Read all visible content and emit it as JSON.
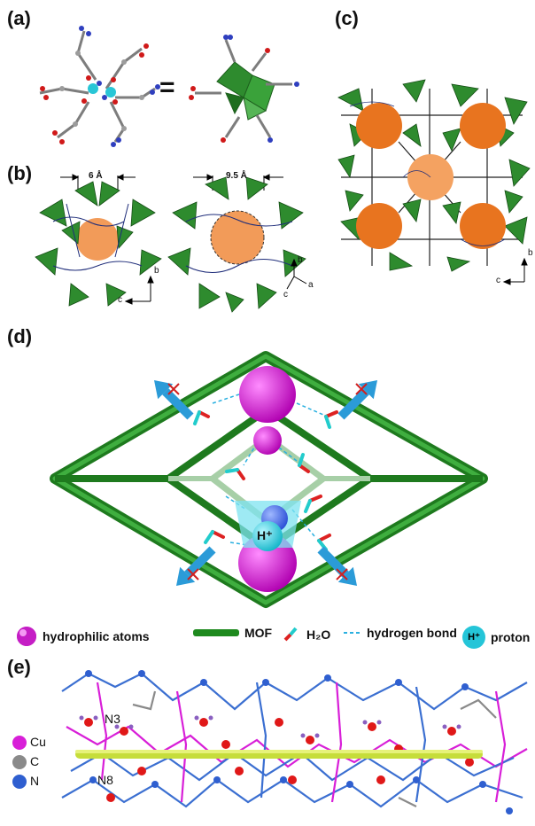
{
  "panels": {
    "a": "(a)",
    "b": "(b)",
    "c": "(c)",
    "d": "(d)",
    "e": "(e)"
  },
  "panel_a": {
    "equals": "="
  },
  "panel_b": {
    "dim_left": "6 Å",
    "dim_right": "9.5 Å",
    "axes_left": {
      "up": "b",
      "right": "c"
    },
    "axes_right": {
      "up": "b",
      "right": "a",
      "down": "c"
    }
  },
  "panel_c": {
    "axes": {
      "up": "b",
      "left": "c"
    }
  },
  "panel_d": {
    "proton_label": "H⁺"
  },
  "legend": {
    "hydrophilic": "hydrophilic atoms",
    "mof": "MOF",
    "water": "H₂O",
    "hbond": "hydrogen bond",
    "proton_symbol": "H⁺",
    "proton": "proton"
  },
  "panel_e": {
    "labels": {
      "n3": "N3",
      "n8": "N8"
    },
    "key": [
      {
        "symbol": "Cu",
        "color": "#d81fd8"
      },
      {
        "symbol": "C",
        "color": "#8a8a8a"
      },
      {
        "symbol": "N",
        "color": "#2f5fd0"
      }
    ]
  }
}
